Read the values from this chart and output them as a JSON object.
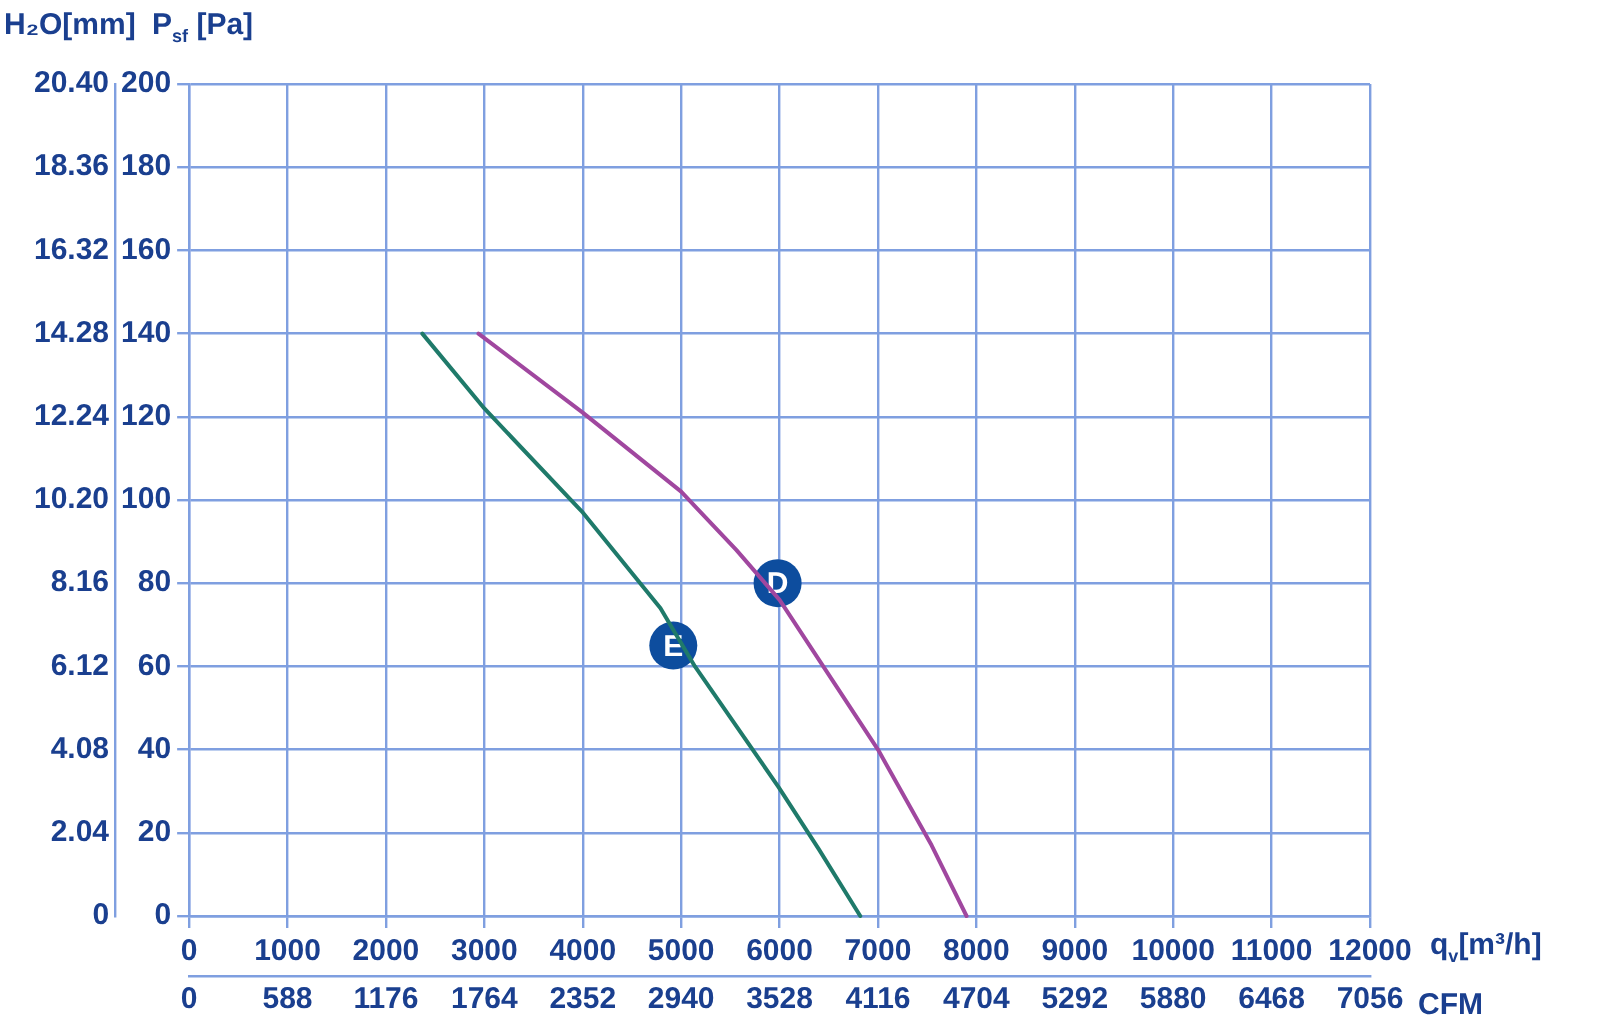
{
  "chart_data": {
    "type": "line",
    "xlabel": "q$_{v}$[m³/h]",
    "x2label": "CFM",
    "ylabel": "P$_{sf}$ [Pa]",
    "y2label": "H₂O[mm]",
    "xlim": [
      0,
      12000
    ],
    "xticks": [
      0,
      1000,
      2000,
      3000,
      4000,
      5000,
      6000,
      7000,
      8000,
      9000,
      10000,
      11000,
      12000
    ],
    "x2lim": [
      0,
      7056
    ],
    "x2ticks": [
      0,
      588,
      1176,
      1764,
      2352,
      2940,
      3528,
      4116,
      4704,
      5292,
      5880,
      6468,
      7056
    ],
    "ylim": [
      0,
      200
    ],
    "yticks": [
      0,
      20,
      40,
      60,
      80,
      100,
      120,
      140,
      160,
      180,
      200
    ],
    "y2lim": [
      0,
      20.4
    ],
    "y2ticks": [
      {
        "value": 0,
        "label": "0"
      },
      2.04,
      4.08,
      6.12,
      8.16,
      {
        "value": 10.2,
        "label": "10.20"
      },
      12.24,
      14.28,
      16.32,
      18.36,
      {
        "value": 20.4,
        "label": "20.40"
      }
    ],
    "grid": true,
    "legend": false,
    "marker": "none",
    "line_style": "solid",
    "series": [
      {
        "color": "#a0479f",
        "x": [
          2940,
          4000,
          5000,
          5560,
          6000,
          7000,
          7545,
          7900
        ],
        "values": [
          140,
          121,
          102,
          88,
          76,
          40,
          17,
          0
        ]
      },
      {
        "color": "#1f7a6a",
        "x": [
          2370,
          3000,
          4000,
          4790,
          5140,
          5990,
          6400,
          6820
        ],
        "values": [
          140,
          122,
          97,
          74,
          60,
          31,
          16,
          0
        ]
      }
    ],
    "annotations": [
      {
        "text": "D",
        "x": 5980,
        "y": 80
      },
      {
        "text": "E",
        "x": 4920,
        "y": 65
      }
    ]
  }
}
